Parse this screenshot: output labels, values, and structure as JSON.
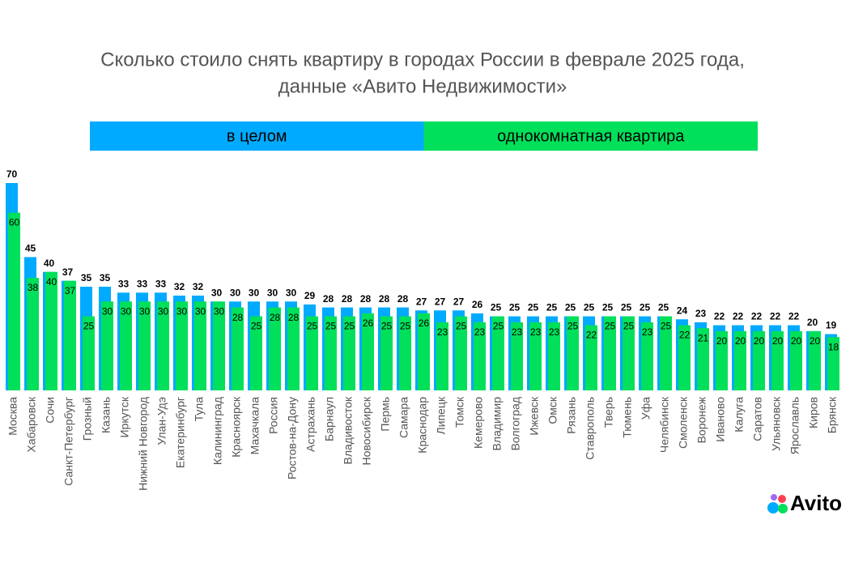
{
  "chart_data": {
    "type": "bar",
    "title": [
      "Сколько стоило снять квартиру в городах России в феврале 2025 года,",
      "данные «Авито Недвижимости»"
    ],
    "categories": [
      "Москва",
      "Хабаровск",
      "Сочи",
      "Санкт-Петербург",
      "Грозный",
      "Казань",
      "Иркутск",
      "Нижний Новгород",
      "Улан-Удэ",
      "Екатеринбург",
      "Тула",
      "Калининград",
      "Красноярск",
      "Махачкала",
      "Россия",
      "Ростов-на-Дону",
      "Астрахань",
      "Барнаул",
      "Владивосток",
      "Новосибирск",
      "Пермь",
      "Самара",
      "Краснодар",
      "Липецк",
      "Томск",
      "Кемерово",
      "Владимир",
      "Волгоград",
      "Ижевск",
      "Омск",
      "Рязань",
      "Ставрополь",
      "Тверь",
      "Тюмень",
      "Уфа",
      "Челябинск",
      "Смоленск",
      "Воронеж",
      "Иваново",
      "Калуга",
      "Саратов",
      "Ульяновск",
      "Ярославль",
      "Киров",
      "Брянск"
    ],
    "series": [
      {
        "name": "в целом",
        "color": "#00aaff",
        "values": [
          70,
          45,
          40,
          37,
          35,
          35,
          33,
          33,
          33,
          32,
          32,
          30,
          30,
          30,
          30,
          30,
          29,
          28,
          28,
          28,
          28,
          28,
          27,
          27,
          27,
          26,
          25,
          25,
          25,
          25,
          25,
          25,
          25,
          25,
          25,
          25,
          24,
          23,
          22,
          22,
          22,
          22,
          22,
          20,
          19
        ]
      },
      {
        "name": "однокомнатная квартира",
        "color": "#00e05a",
        "values": [
          60,
          38,
          40,
          37,
          25,
          30,
          30,
          30,
          30,
          30,
          30,
          30,
          28,
          25,
          28,
          28,
          25,
          25,
          25,
          26,
          25,
          25,
          26,
          23,
          25,
          23,
          25,
          23,
          23,
          23,
          25,
          22,
          25,
          25,
          23,
          25,
          22,
          21,
          20,
          20,
          20,
          20,
          20,
          20,
          18
        ]
      }
    ]
  },
  "logo": "Avito"
}
